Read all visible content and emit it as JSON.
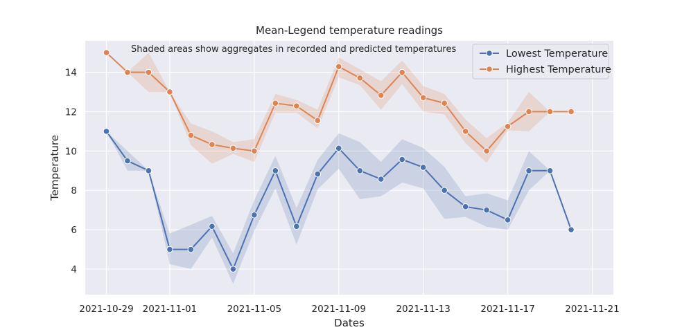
{
  "chart_data": {
    "type": "line",
    "title": "Mean-Legend temperature readings",
    "xlabel": "Dates",
    "ylabel": "Temperature",
    "annotation": "Shaded areas show aggregates in recorded and predicted temperatures",
    "grid": true,
    "legend_position": "top-right",
    "xlim": [
      "2021-10-28",
      "2021-11-22"
    ],
    "ylim": [
      2.7,
      15.6
    ],
    "x_ticks": [
      "2021-10-29",
      "2021-11-01",
      "2021-11-05",
      "2021-11-09",
      "2021-11-13",
      "2021-11-17",
      "2021-11-21"
    ],
    "y_ticks": [
      4,
      6,
      8,
      10,
      12,
      14
    ],
    "x": [
      "2021-10-29",
      "2021-10-30",
      "2021-10-31",
      "2021-11-01",
      "2021-11-02",
      "2021-11-03",
      "2021-11-04",
      "2021-11-05",
      "2021-11-06",
      "2021-11-07",
      "2021-11-08",
      "2021-11-09",
      "2021-11-10",
      "2021-11-11",
      "2021-11-12",
      "2021-11-13",
      "2021-11-14",
      "2021-11-15",
      "2021-11-16",
      "2021-11-17",
      "2021-11-18",
      "2021-11-19",
      "2021-11-20"
    ],
    "series": [
      {
        "name": "Lowest Temperature",
        "color": "#4c72b0",
        "values": [
          11,
          9.5,
          9,
          5,
          5,
          6.17,
          4,
          6.75,
          9,
          6.17,
          8.83,
          10.14,
          9,
          8.57,
          9.57,
          9.17,
          8,
          7.17,
          7,
          6.5,
          9,
          9,
          6
        ],
        "band_low": [
          11,
          9,
          9,
          4.25,
          4,
          5.6,
          3.25,
          5.95,
          8.1,
          5.25,
          8.05,
          9.1,
          7.55,
          7.7,
          8.4,
          8.1,
          6.55,
          6.65,
          6.15,
          6.0,
          8.0,
          9,
          6
        ],
        "band_high": [
          11,
          10,
          9,
          5.8,
          6.25,
          6.7,
          4.8,
          7.5,
          9.75,
          7.1,
          9.55,
          10.9,
          10.45,
          9.45,
          10.6,
          10.15,
          9.2,
          7.7,
          7.85,
          7.5,
          10,
          9,
          6
        ]
      },
      {
        "name": "Highest Temperature",
        "color": "#dd8452",
        "values": [
          15,
          14,
          14,
          13,
          10.8,
          10.33,
          10.14,
          10,
          12.43,
          12.29,
          11.55,
          14.29,
          13.71,
          12.83,
          14,
          12.71,
          12.43,
          11,
          10,
          11.25,
          12,
          12,
          12
        ],
        "band_low": [
          15,
          14,
          13,
          13,
          10.3,
          9.35,
          9.85,
          9.45,
          11.95,
          11.95,
          11.15,
          13.75,
          13.35,
          12.1,
          13.4,
          12.0,
          11.85,
          10.4,
          9.4,
          11.05,
          11,
          12,
          12
        ],
        "band_high": [
          15,
          14,
          15,
          13,
          11.4,
          11.0,
          10.45,
          10.6,
          12.9,
          12.6,
          12.1,
          14.75,
          14.15,
          13.55,
          14.6,
          13.3,
          12.9,
          11.6,
          10.65,
          11.45,
          13,
          12,
          12
        ]
      }
    ]
  }
}
